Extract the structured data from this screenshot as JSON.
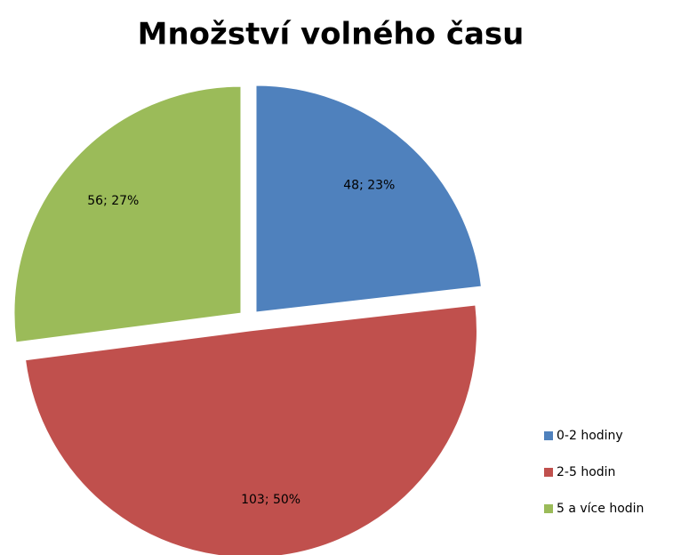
{
  "chart_data": {
    "type": "pie",
    "title": "Množství volného času",
    "categories": [
      "0-2 hodiny",
      "2-5 hodin",
      "5 a více hodin"
    ],
    "values": [
      48,
      103,
      56
    ],
    "value_labels": [
      "48; 23%",
      "103; 50%",
      "56; 27%"
    ],
    "colors": [
      "#4f81bd",
      "#c0504d",
      "#9bbb59"
    ],
    "legend": "right"
  }
}
